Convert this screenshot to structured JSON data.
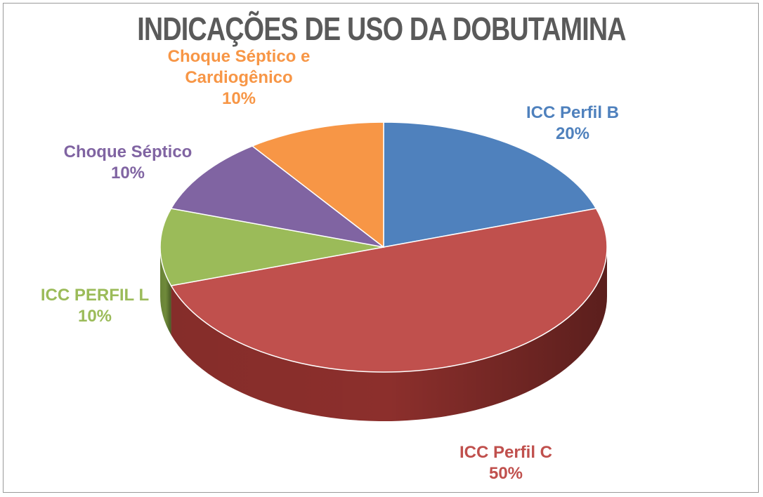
{
  "chart_data": {
    "type": "pie",
    "title": "INDICAÇÕES DE USO DA DOBUTAMINA",
    "slices": [
      {
        "label": "ICC Perfil B",
        "pct_label": "20%",
        "value": 20,
        "color": "#4f81bd",
        "side": "#3a6190"
      },
      {
        "label": "ICC Perfil C",
        "pct_label": "50%",
        "value": 50,
        "color": "#c0504d",
        "side": "#8c2f2c"
      },
      {
        "label": "ICC PERFIL L",
        "pct_label": "10%",
        "value": 10,
        "color": "#9bbb59",
        "side": "#6f8a3a"
      },
      {
        "label": "Choque Séptico",
        "pct_label": "10%",
        "value": 10,
        "color": "#8064a2",
        "side": "#5c4578"
      },
      {
        "label_lines": [
          "Choque Séptico e",
          "Cardiogênico"
        ],
        "pct_label": "10%",
        "value": 10,
        "color": "#f79646",
        "side": "#c06a24"
      }
    ],
    "legend": "none"
  }
}
